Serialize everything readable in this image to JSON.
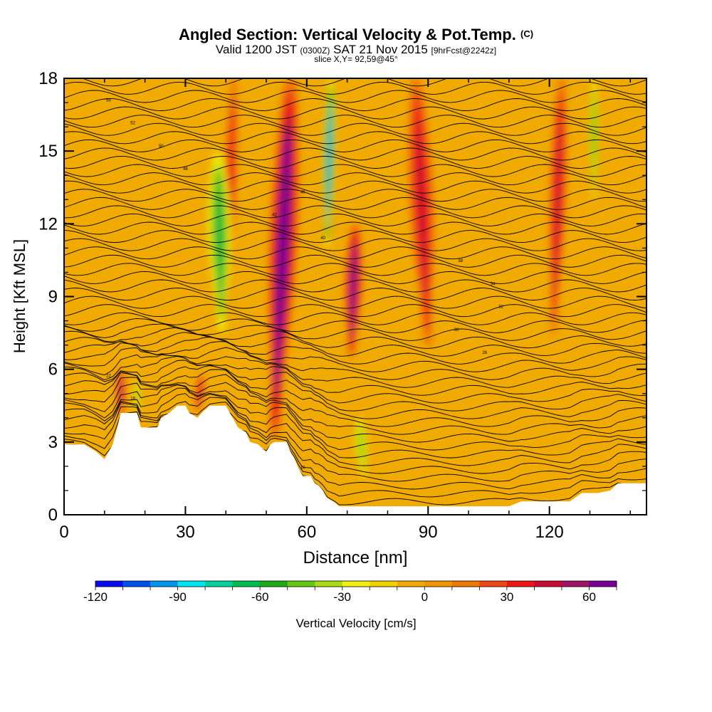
{
  "chart_data": {
    "type": "heatmap",
    "title": "Angled Section: Vertical Velocity & Pot.Temp.",
    "title_suffix": "(C)",
    "subtitle": {
      "valid": "Valid 1200 JST",
      "zulu": "(0300Z)",
      "date": "SAT 21 Nov 2015",
      "forecast": "[9hrFcst@2242z]"
    },
    "slice_label": "slice X,Y= 92,59@45°",
    "xlabel": "Distance [nm]",
    "ylabel": "Height [Kft MSL]",
    "xlim": [
      0,
      144
    ],
    "ylim": [
      0,
      18
    ],
    "x_ticks": [
      "0",
      "30",
      "60",
      "90",
      "120"
    ],
    "y_ticks": [
      "0",
      "3",
      "6",
      "9",
      "12",
      "15",
      "18"
    ],
    "x_tick_values": [
      0,
      30,
      60,
      90,
      120
    ],
    "y_tick_values": [
      0,
      3,
      6,
      9,
      12,
      15,
      18
    ],
    "grid": false,
    "colorbar": {
      "label": "Vertical Velocity [cm/s]",
      "min": -120,
      "max": 70,
      "step": 10,
      "tick_labels": [
        "-120",
        "-90",
        "-60",
        "-30",
        "0",
        "30",
        "60"
      ],
      "tick_values": [
        -120,
        -90,
        -60,
        -30,
        0,
        30,
        60
      ],
      "colors": [
        "#0a0af0",
        "#0050f0",
        "#0096f0",
        "#00e6f0",
        "#00d2a0",
        "#00be50",
        "#1eaa14",
        "#64c814",
        "#aadc14",
        "#f0f014",
        "#f0d200",
        "#f0aa00",
        "#f09600",
        "#f07800",
        "#f04614",
        "#f01414",
        "#c80a32",
        "#a01464",
        "#780096"
      ]
    },
    "terrain_kft": [
      [
        0,
        2.9
      ],
      [
        5,
        2.9
      ],
      [
        8,
        2.6
      ],
      [
        10,
        2.3
      ],
      [
        11,
        2.6
      ],
      [
        12,
        2.9
      ],
      [
        13,
        3.5
      ],
      [
        14,
        4.2
      ],
      [
        16,
        4.2
      ],
      [
        18,
        4.2
      ],
      [
        19,
        3.6
      ],
      [
        20,
        3.6
      ],
      [
        23,
        3.6
      ],
      [
        24,
        4.0
      ],
      [
        26,
        4.2
      ],
      [
        28,
        4.5
      ],
      [
        30,
        4.5
      ],
      [
        31,
        4.2
      ],
      [
        33,
        4.0
      ],
      [
        34,
        4.2
      ],
      [
        36,
        4.5
      ],
      [
        40,
        4.5
      ],
      [
        41,
        4.2
      ],
      [
        43,
        3.6
      ],
      [
        45,
        3.4
      ],
      [
        46,
        3.0
      ],
      [
        48,
        2.9
      ],
      [
        50,
        2.6
      ],
      [
        51,
        2.9
      ],
      [
        52,
        3.0
      ],
      [
        53,
        3.0
      ],
      [
        55,
        3.0
      ],
      [
        56,
        2.6
      ],
      [
        57,
        2.3
      ],
      [
        58,
        1.9
      ],
      [
        59,
        1.6
      ],
      [
        61,
        1.6
      ],
      [
        62,
        1.3
      ],
      [
        63,
        1.2
      ],
      [
        64,
        1.0
      ],
      [
        65,
        0.7
      ],
      [
        67,
        0.5
      ],
      [
        68,
        0.35
      ],
      [
        110,
        0.35
      ],
      [
        113,
        0.55
      ],
      [
        125,
        0.55
      ],
      [
        128,
        0.9
      ],
      [
        132,
        0.9
      ],
      [
        135,
        1.0
      ],
      [
        137,
        1.3
      ],
      [
        144,
        1.3
      ]
    ],
    "updraft_bands": [
      {
        "x_top": 56,
        "x_bottom": 52,
        "z_top": 18,
        "z_bottom": 3.2,
        "width": 3.5,
        "peak": 65
      },
      {
        "x_top": 72,
        "x_bottom": 71,
        "z_top": 12,
        "z_bottom": 6.5,
        "width": 2.2,
        "peak": 60
      },
      {
        "x_top": 87,
        "x_bottom": 90,
        "z_top": 18,
        "z_bottom": 7,
        "width": 3.0,
        "peak": 35
      },
      {
        "x_top": 123,
        "x_bottom": 121,
        "z_top": 18,
        "z_bottom": 7.5,
        "width": 2.0,
        "peak": 40
      },
      {
        "x_top": 42,
        "x_bottom": 40,
        "z_top": 18,
        "z_bottom": 8,
        "width": 1.5,
        "peak": 30
      },
      {
        "x_top": 14,
        "x_bottom": 14,
        "z_top": 6,
        "z_bottom": 4,
        "width": 1.0,
        "peak": 45
      },
      {
        "x_top": 34,
        "x_bottom": 33,
        "z_top": 5.8,
        "z_bottom": 4.2,
        "width": 1.0,
        "peak": 40
      }
    ],
    "downdraft_bands": [
      {
        "x_top": 66,
        "x_bottom": 65,
        "z_top": 18,
        "z_bottom": 11,
        "width": 1.4,
        "peak": -95
      },
      {
        "x_top": 38,
        "x_bottom": 39,
        "z_top": 15,
        "z_bottom": 7.5,
        "width": 3.0,
        "peak": -55
      },
      {
        "x_top": 131,
        "x_bottom": 131,
        "z_top": 18,
        "z_bottom": 13,
        "width": 1.0,
        "peak": -50
      },
      {
        "x_top": 73,
        "x_bottom": 74,
        "z_top": 4,
        "z_bottom": 1.5,
        "width": 1.5,
        "peak": -40
      },
      {
        "x_top": 18,
        "x_bottom": 18,
        "z_top": 5.5,
        "z_bottom": 4.2,
        "width": 0.8,
        "peak": -40
      }
    ],
    "theta_contours_c": {
      "min": 10,
      "max": 62,
      "interval": 1,
      "labels": [
        "56",
        "52",
        "50",
        "48",
        "46",
        "42",
        "40",
        "38",
        "34",
        "32",
        "30",
        "26",
        "22",
        "18",
        "16",
        "12",
        "10"
      ]
    }
  }
}
